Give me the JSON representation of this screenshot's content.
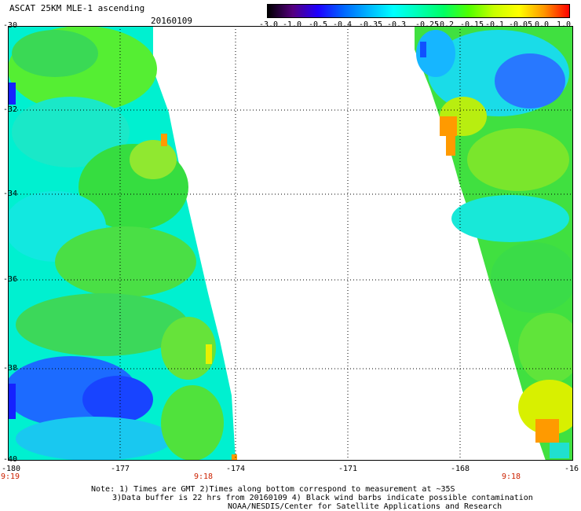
{
  "header": {
    "title": "ASCAT 25KM MLE-1 ascending",
    "date": "20160109"
  },
  "colorbar": {
    "labels": [
      "-3.0",
      "-1.0",
      "-0.5",
      "-0.4",
      "-0.35",
      "-0.3",
      "-0.25",
      "-0.2",
      "-0.15",
      "-0.1",
      "-0.05",
      "0.0",
      "1.0"
    ],
    "colors": [
      "#000000",
      "#55007f",
      "#1e00ff",
      "#0064ff",
      "#00b4ff",
      "#00ffff",
      "#00ffb4",
      "#00ff64",
      "#50ff00",
      "#c8ff00",
      "#ffff00",
      "#ff9600",
      "#ff0000"
    ]
  },
  "axes": {
    "lat_labels": [
      "-30",
      "-32",
      "-34",
      "-36",
      "-38",
      "-40"
    ],
    "lon_labels": [
      "-180",
      "-177",
      "-174",
      "-171",
      "-168",
      "-16"
    ],
    "time_labels": [
      "9:19",
      "9:18",
      "9:18"
    ]
  },
  "notes": {
    "line1": "Note: 1) Times are GMT 2)Times along bottom correspond to measurement at ~35S",
    "line2": "3)Data buffer is 22 hrs from 20160109 4) Black wind barbs indicate possible contamination",
    "line3": "NOAA/NESDIS/Center for Satellite Applications and Research"
  }
}
